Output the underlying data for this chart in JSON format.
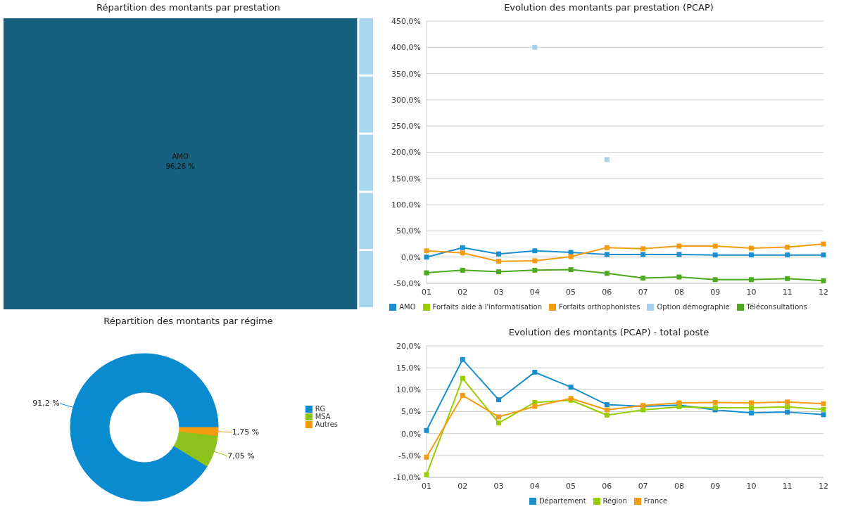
{
  "chart_data": [
    {
      "type": "other",
      "title": "Répartition des montants par prestation",
      "categories": [
        "AMO",
        null,
        null,
        null,
        null,
        null
      ],
      "values": [
        96.26,
        null,
        null,
        null,
        null,
        null
      ],
      "value_labels": [
        "96,26 %",
        null,
        null,
        null,
        null,
        null
      ],
      "colors": [
        "#17607f",
        "#a8d8f0",
        "#a8d8f0",
        "#a8d8f0",
        "#a8d8f0",
        "#a8d8f0"
      ]
    },
    {
      "type": "line",
      "title": "Evolution des montants par prestation (PCAP)",
      "categories": [
        "01",
        "02",
        "03",
        "04",
        "05",
        "06",
        "07",
        "08",
        "09",
        "10",
        "11",
        "12"
      ],
      "series": [
        {
          "name": "AMO",
          "color": "#1a8fd0",
          "values": [
            0,
            18,
            6,
            12,
            9,
            5,
            5,
            5,
            4,
            4,
            4,
            4
          ]
        },
        {
          "name": "Forfaits aide à l'informatisation",
          "color": "#99cc00",
          "values": [
            null,
            null,
            null,
            null,
            null,
            null,
            null,
            null,
            null,
            null,
            null,
            null
          ]
        },
        {
          "name": "Forfaits orthophonistes",
          "color": "#f39c12",
          "values": [
            12,
            8,
            -8,
            -7,
            1,
            18,
            16,
            21,
            21,
            17,
            19,
            25
          ]
        },
        {
          "name": "Option démographie",
          "type": "scatter",
          "color": "#a6d2ec",
          "values": [
            null,
            null,
            null,
            400,
            null,
            186,
            null,
            null,
            null,
            null,
            null,
            null
          ]
        },
        {
          "name": "Téléconsultations",
          "color": "#4ca81e",
          "values": [
            -30,
            -25,
            -28,
            -25,
            -24,
            -31,
            -40,
            -38,
            -43,
            -43,
            -41,
            -45
          ]
        }
      ],
      "ylim": [
        -50,
        450
      ],
      "yticks": [
        {
          "value": -50,
          "label": "-50,0%"
        },
        {
          "value": 0,
          "label": "0,0%"
        },
        {
          "value": 50,
          "label": "50,0%"
        },
        {
          "value": 100,
          "label": "100,0%"
        },
        {
          "value": 150,
          "label": "150,0%"
        },
        {
          "value": 200,
          "label": "200,0%"
        },
        {
          "value": 250,
          "label": "250,0%"
        },
        {
          "value": 300,
          "label": "300,0%"
        },
        {
          "value": 350,
          "label": "350,0%"
        },
        {
          "value": 400,
          "label": "400,0%"
        },
        {
          "value": 450,
          "label": "450,0%"
        }
      ],
      "grid": "y",
      "legend": "bottom",
      "marker": "square"
    },
    {
      "type": "donut",
      "title": "Répartition des montants par régime",
      "categories": [
        "RG",
        "MSA",
        "Autres"
      ],
      "values": [
        91.2,
        7.05,
        1.75
      ],
      "value_labels": [
        "91,2 %",
        "7,05 %",
        "1,75 %"
      ],
      "colors": [
        "#0a8bd0",
        "#8cc21c",
        "#f39a10"
      ],
      "legend": "right"
    },
    {
      "type": "line",
      "title": "Evolution des montants (PCAP) - total poste",
      "categories": [
        "01",
        "02",
        "03",
        "04",
        "05",
        "06",
        "07",
        "08",
        "09",
        "10",
        "11",
        "12"
      ],
      "series": [
        {
          "name": "Département",
          "color": "#1a8fd0",
          "values": [
            0.7,
            16.9,
            7.7,
            14.0,
            10.6,
            6.6,
            6.2,
            6.5,
            5.4,
            4.7,
            4.9,
            4.3
          ]
        },
        {
          "name": "Région",
          "color": "#99cc00",
          "values": [
            -9.4,
            12.6,
            2.4,
            7.1,
            7.6,
            4.2,
            5.4,
            6.1,
            5.9,
            5.9,
            6.1,
            5.5
          ]
        },
        {
          "name": "France",
          "color": "#f39c12",
          "values": [
            -5.4,
            8.7,
            3.8,
            6.2,
            8.0,
            5.4,
            6.4,
            7.0,
            7.1,
            7.0,
            7.2,
            6.8
          ]
        }
      ],
      "ylim": [
        -10,
        20
      ],
      "yticks": [
        {
          "value": -10,
          "label": "-10,0%"
        },
        {
          "value": -5,
          "label": "-5,0%"
        },
        {
          "value": 0,
          "label": "0,0%"
        },
        {
          "value": 5,
          "label": "5,0%"
        },
        {
          "value": 10,
          "label": "10,0%"
        },
        {
          "value": 15,
          "label": "15,0%"
        },
        {
          "value": 20,
          "label": "20,0%"
        }
      ],
      "grid": "y",
      "legend": "bottom",
      "marker": "square"
    }
  ]
}
